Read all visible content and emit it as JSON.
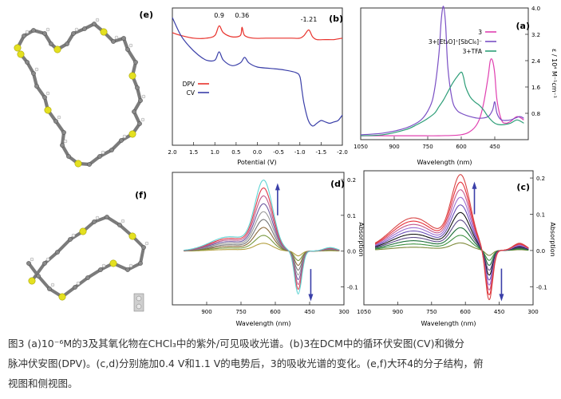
{
  "figure": {
    "panels": {
      "a": "(a)",
      "b": "(b)",
      "c": "(c)",
      "d": "(d)",
      "e": "(e)",
      "f": "(f)"
    }
  },
  "chart_data": [
    {
      "panel": "(a)",
      "type": "line",
      "xlabel": "Wavelength (nm)",
      "ylabel": "ε / 10⁴ M⁻¹cm⁻¹",
      "xlim": [
        1050,
        300
      ],
      "ylim": [
        0,
        4.0
      ],
      "xticks": [
        1050,
        900,
        750,
        600,
        450
      ],
      "yticks": [
        0.8,
        1.6,
        2.4,
        3.2,
        4.0
      ],
      "legend_position": "top-right",
      "series": [
        {
          "name": "3",
          "color": "#e040b0",
          "x": [
            1050,
            900,
            800,
            700,
            600,
            550,
            520,
            500,
            480,
            470,
            460,
            450,
            440,
            420,
            400,
            380,
            350,
            320
          ],
          "y": [
            0.12,
            0.12,
            0.12,
            0.12,
            0.15,
            0.3,
            0.6,
            1.1,
            1.9,
            2.4,
            2.4,
            2.0,
            1.2,
            0.6,
            0.5,
            0.55,
            0.7,
            0.6
          ]
        },
        {
          "name": "3+[Et₃O]⁺[SbCl₆]⁻",
          "color": "#7a4fc4",
          "x": [
            1050,
            950,
            850,
            780,
            740,
            720,
            700,
            690,
            680,
            670,
            660,
            640,
            620,
            600,
            560,
            520,
            480,
            460,
            450,
            440,
            420,
            380,
            340,
            320
          ],
          "y": [
            0.15,
            0.2,
            0.35,
            0.6,
            1.0,
            1.5,
            2.6,
            3.6,
            4.05,
            3.5,
            2.2,
            1.2,
            0.9,
            0.8,
            0.7,
            0.65,
            0.7,
            0.9,
            1.15,
            0.8,
            0.6,
            0.6,
            0.7,
            0.65
          ]
        },
        {
          "name": "3+TFA",
          "color": "#2e9e78",
          "x": [
            1050,
            950,
            850,
            800,
            760,
            720,
            700,
            680,
            660,
            640,
            620,
            600,
            590,
            580,
            560,
            540,
            520,
            500,
            480,
            450,
            420,
            380,
            350,
            320
          ],
          "y": [
            0.12,
            0.15,
            0.3,
            0.45,
            0.6,
            0.8,
            1.0,
            1.2,
            1.45,
            1.7,
            1.9,
            2.05,
            1.9,
            1.6,
            1.3,
            1.15,
            1.05,
            0.9,
            0.7,
            0.5,
            0.45,
            0.5,
            0.6,
            0.5
          ]
        }
      ]
    },
    {
      "panel": "(b)",
      "type": "line",
      "xlabel": "Potential (V)",
      "xlim": [
        2.0,
        -2.0
      ],
      "xticks": [
        2.0,
        1.5,
        1.0,
        0.5,
        0.0,
        -0.5,
        -1.0,
        -1.5,
        -2.0
      ],
      "xtick_labels": [
        "2.0",
        "1.5",
        "1.0",
        "0.5",
        "0.0",
        "-0.5",
        "-1.0",
        "-1.5",
        "-2.0"
      ],
      "ylim": [
        0,
        1
      ],
      "legend_position": "bottom-left",
      "annotations": [
        "0.9",
        "0.36",
        "-1.21"
      ],
      "series": [
        {
          "name": "DPV",
          "color": "#e8312b",
          "x": [
            2.0,
            1.8,
            1.5,
            1.2,
            1.0,
            0.9,
            0.8,
            0.6,
            0.4,
            0.36,
            0.3,
            0.1,
            -0.2,
            -0.5,
            -0.8,
            -1.0,
            -1.1,
            -1.21,
            -1.3,
            -1.4,
            -1.6,
            -1.8,
            -2.0
          ],
          "y": [
            0.82,
            0.8,
            0.78,
            0.78,
            0.8,
            0.87,
            0.82,
            0.79,
            0.8,
            0.86,
            0.8,
            0.78,
            0.78,
            0.78,
            0.78,
            0.78,
            0.8,
            0.84,
            0.79,
            0.77,
            0.77,
            0.77,
            0.78
          ]
        },
        {
          "name": "CV",
          "color": "#3a3fa8",
          "x": [
            2.0,
            1.8,
            1.6,
            1.4,
            1.2,
            1.0,
            0.9,
            0.8,
            0.6,
            0.4,
            0.3,
            0.2,
            0.0,
            -0.3,
            -0.6,
            -0.9,
            -1.0,
            -1.05,
            -1.1,
            -1.2,
            -1.3,
            -1.4,
            -1.5,
            -1.6,
            -1.7,
            -1.8,
            -1.9,
            -2.0
          ],
          "y": [
            0.93,
            0.8,
            0.72,
            0.66,
            0.62,
            0.62,
            0.68,
            0.62,
            0.58,
            0.6,
            0.64,
            0.6,
            0.57,
            0.56,
            0.55,
            0.53,
            0.5,
            0.4,
            0.3,
            0.18,
            0.14,
            0.16,
            0.18,
            0.17,
            0.16,
            0.17,
            0.18,
            0.22
          ]
        }
      ]
    },
    {
      "panel": "(c)",
      "type": "line",
      "xlabel": "Wavelength (nm)",
      "ylabel": "Absorption",
      "xlim": [
        1050,
        300
      ],
      "xticks": [
        1050,
        900,
        750,
        600,
        450,
        300
      ],
      "ylim": [
        -0.15,
        0.22
      ],
      "yticks": [
        -0.1,
        0.0,
        0.1,
        0.2
      ],
      "ytick_labels": [
        "-0.1",
        "0.0",
        "0.1",
        "0.2"
      ],
      "trend": [
        "increase",
        "decrease"
      ]
    },
    {
      "panel": "(d)",
      "type": "line",
      "xlabel": "Wavelength (nm)",
      "ylabel": "Absorption",
      "xlim": [
        1050,
        300
      ],
      "xticks": [
        900,
        750,
        600,
        450,
        300
      ],
      "ylim": [
        -0.15,
        0.22
      ],
      "yticks": [
        -0.1,
        0.0,
        0.1,
        0.2
      ],
      "ytick_labels": [
        "-0.1",
        "0.0",
        "0.1",
        "0.2"
      ],
      "trend": [
        "increase",
        "decrease"
      ]
    }
  ],
  "caption": {
    "line1": "图3 (a)10⁻⁶M的3及其氧化物在CHCl₃中的紫外/可见吸收光谱。(b)3在DCM中的循环伏安图(CV)和微分",
    "line2": "脉冲伏安图(DPV)。(c,d)分别施加0.4 V和1.1 V的电势后，3的吸收光谱的变化。(e,f)大环4的分子结构，俯",
    "line3": "视图和侧视图。"
  }
}
